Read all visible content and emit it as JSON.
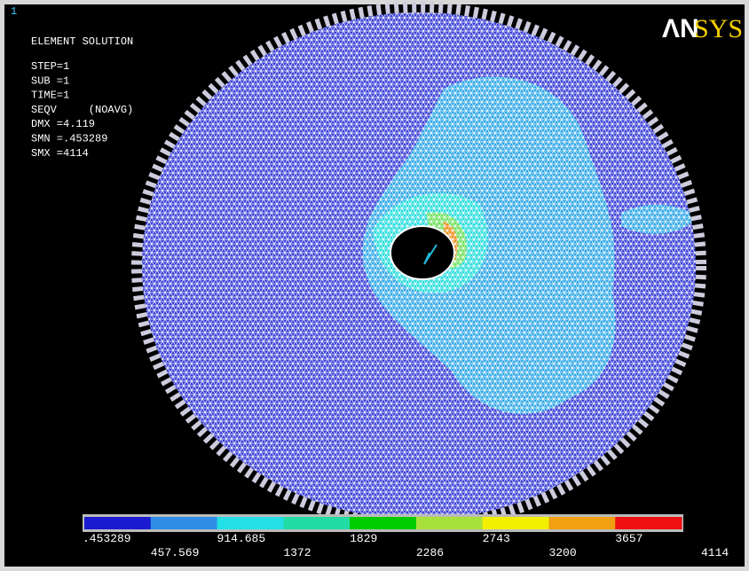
{
  "window": {
    "number": "1"
  },
  "logo": {
    "left": "ΛN",
    "right": "SYS"
  },
  "info": {
    "lines": [
      "ELEMENT SOLUTION",
      "STEP=1",
      "SUB =1",
      "TIME=1",
      "SEQV     (NOAVG)",
      "DMX =4.119",
      "SMN =.453289",
      "SMX =4114"
    ]
  },
  "legend": {
    "colors": [
      "#1a1ad0",
      "#2e8ee6",
      "#22e0e6",
      "#22dca6",
      "#00cc00",
      "#a8e03a",
      "#f2f000",
      "#f0a010",
      "#ee1010"
    ],
    "labels": [
      ".453289",
      "457.569",
      "914.685",
      "1372",
      "1829",
      "2286",
      "2743",
      "3200",
      "3657",
      "4114"
    ]
  }
}
